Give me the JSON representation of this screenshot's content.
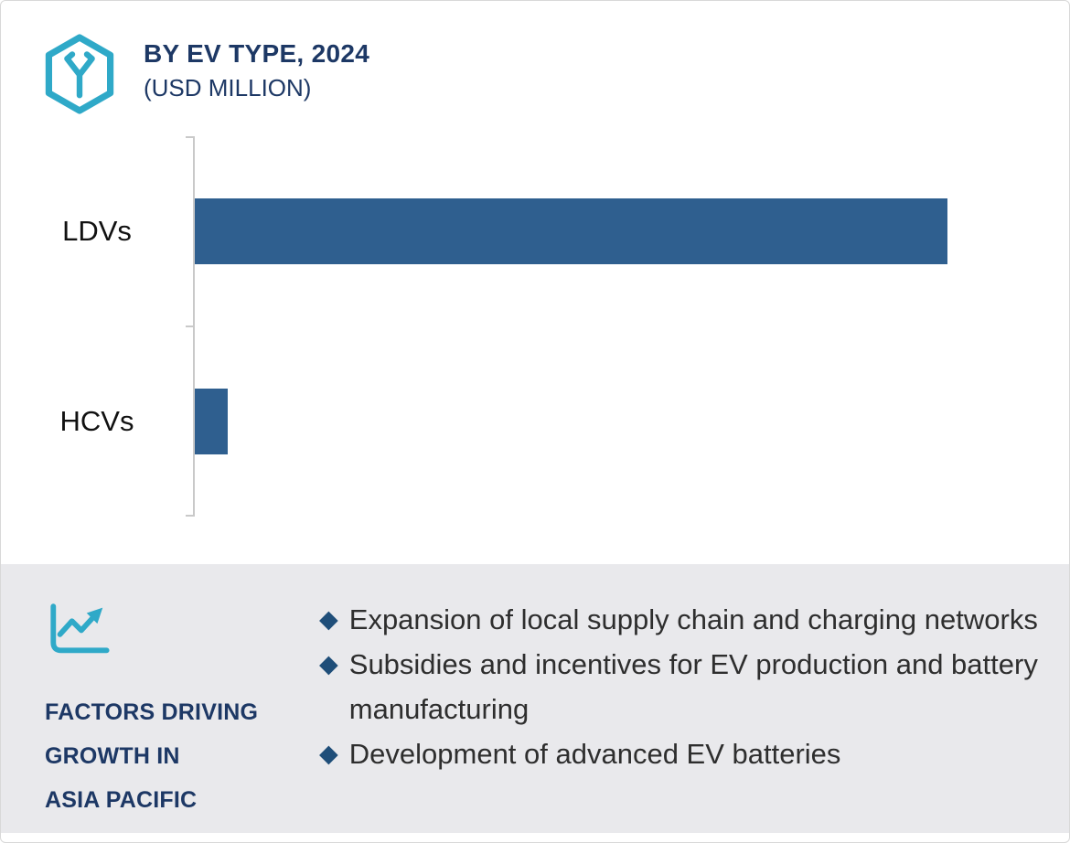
{
  "header": {
    "title": "BY EV TYPE, 2024",
    "subtitle": "(USD MILLION)"
  },
  "chart_data": {
    "type": "bar",
    "orientation": "horizontal",
    "title": "BY EV TYPE, 2024 (USD MILLION)",
    "categories": [
      "LDVs",
      "HCVs"
    ],
    "values": [
      100,
      4.4
    ],
    "xlim": [
      0,
      115
    ],
    "xlabel": "",
    "ylabel": "",
    "grid": false,
    "legend": false,
    "bar_color": "#2f5f8f",
    "axis_color": "#c9c9c9"
  },
  "factors": {
    "bullet_glyph": "◆",
    "title_lines": [
      "FACTORS DRIVING",
      "GROWTH IN",
      "ASIA PACIFIC"
    ],
    "bullets": [
      "Expansion of local supply chain and charging networks",
      "Subsidies and incentives for EV production and battery manufacturing",
      "Development of advanced EV batteries"
    ]
  },
  "colors": {
    "navy_text": "#1d3865",
    "bar": "#2f5f8f",
    "diamond": "#1f4e79",
    "teal_icon": "#2fa9c8",
    "panel_background": "#e9e9ec"
  }
}
